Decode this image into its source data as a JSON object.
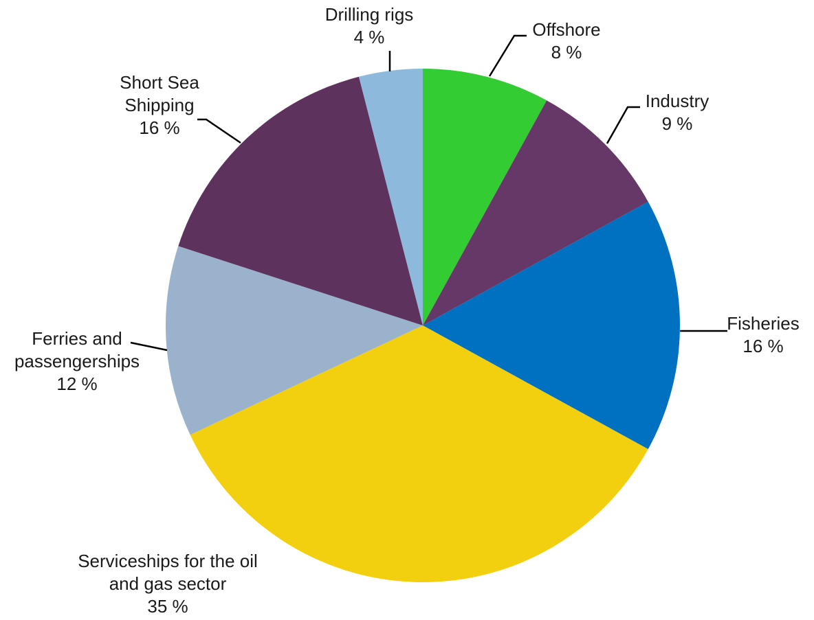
{
  "chart_data": {
    "type": "pie",
    "start_angle_deg": 0,
    "direction": "clockwise",
    "slices": [
      {
        "label_lines": [
          "Offshore"
        ],
        "value": 8,
        "value_label": "8 %",
        "color": "#33cc33"
      },
      {
        "label_lines": [
          "Industry"
        ],
        "value": 9,
        "value_label": "9 %",
        "color": "#663868"
      },
      {
        "label_lines": [
          "Fisheries"
        ],
        "value": 16,
        "value_label": "16 %",
        "color": "#0070c0"
      },
      {
        "label_lines": [
          "Serviceships for the oil",
          "and gas sector"
        ],
        "value": 35,
        "value_label": "35 %",
        "color": "#f2d00f"
      },
      {
        "label_lines": [
          "Ferries and",
          "passengerships"
        ],
        "value": 12,
        "value_label": "12 %",
        "color": "#9ab2cb"
      },
      {
        "label_lines": [
          "Short Sea",
          "Shipping"
        ],
        "value": 16,
        "value_label": "16 %",
        "color": "#5d335e"
      },
      {
        "label_lines": [
          "Drilling rigs"
        ],
        "value": 4,
        "value_label": "4 %",
        "color": "#8cb9dc"
      }
    ]
  }
}
